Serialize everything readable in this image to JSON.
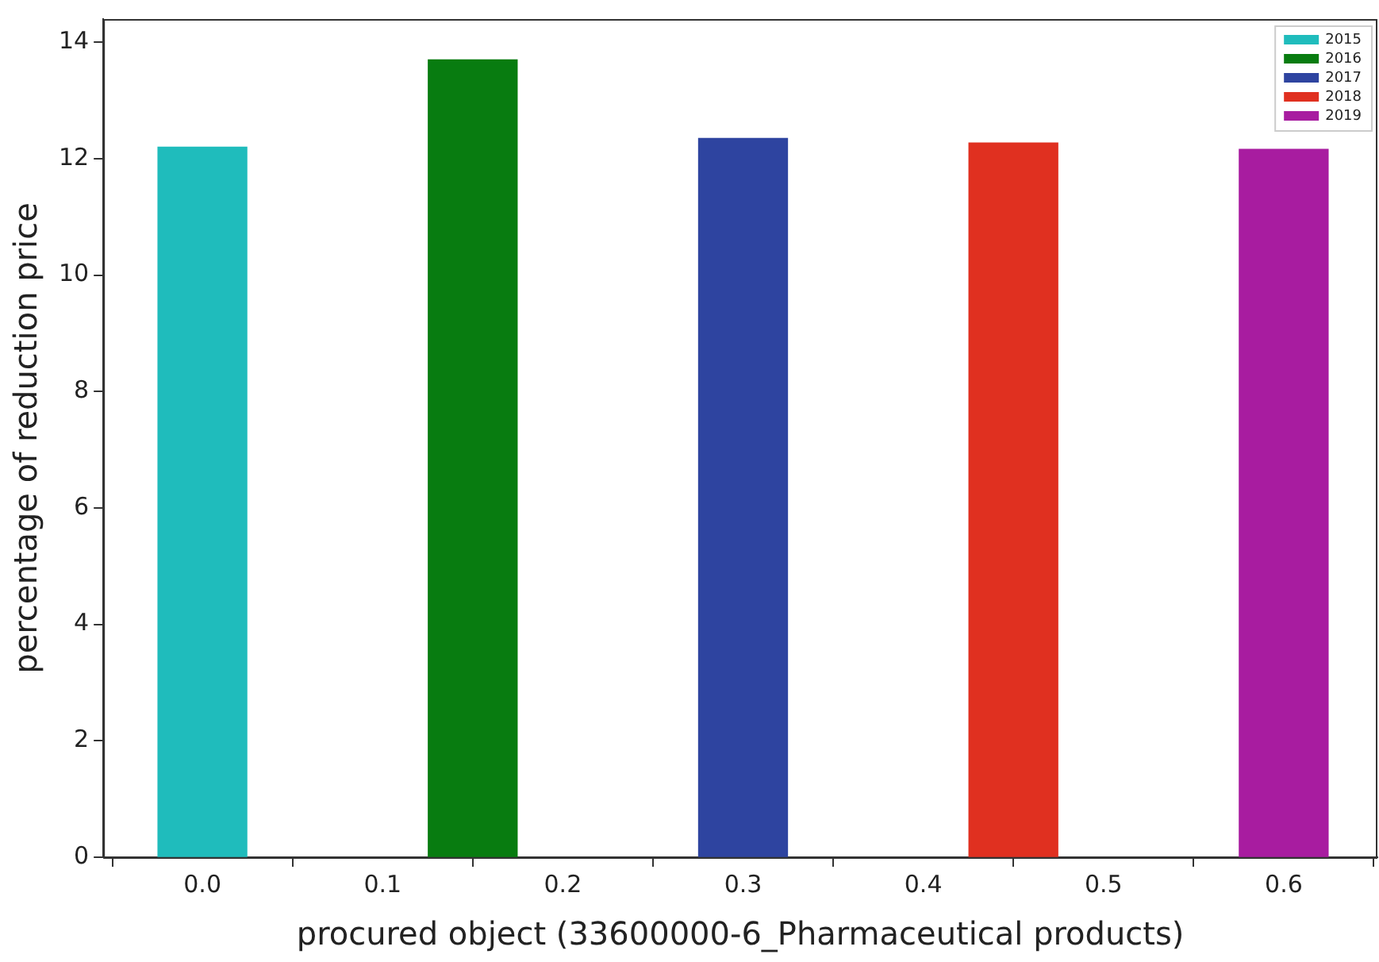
{
  "chart_data": {
    "type": "bar",
    "xlabel": "procured object (33600000-6_Pharmaceutical products)",
    "ylabel": "percentage of reduction price",
    "series": [
      {
        "name": "2015",
        "color": "#1fbcbc",
        "x": [
          0
        ],
        "values": [
          12.2
        ]
      },
      {
        "name": "2016",
        "color": "#087c10",
        "x": [
          0.15
        ],
        "values": [
          13.7
        ]
      },
      {
        "name": "2017",
        "color": "#2e44a0",
        "x": [
          0.3
        ],
        "values": [
          12.35
        ]
      },
      {
        "name": "2018",
        "color": "#e03020",
        "x": [
          0.45
        ],
        "values": [
          12.27
        ]
      },
      {
        "name": "2019",
        "color": "#a81ca0",
        "x": [
          0.6
        ],
        "values": [
          12.16
        ]
      }
    ],
    "xlim": [
      -0.055,
      0.652
    ],
    "xticks": [
      {
        "value": 0,
        "label": "0.0"
      },
      {
        "value": 0.1,
        "label": "0.1"
      },
      {
        "value": 0.2,
        "label": "0.2"
      },
      {
        "value": 0.3,
        "label": "0.3"
      },
      {
        "value": 0.4,
        "label": "0.4"
      },
      {
        "value": 0.5,
        "label": "0.5"
      },
      {
        "value": 0.6,
        "label": "0.6"
      }
    ],
    "ylim": [
      0,
      14.4
    ],
    "yticks": [
      0,
      2,
      4,
      6,
      8,
      10,
      12,
      14
    ],
    "grid": false,
    "legend": "top right"
  }
}
